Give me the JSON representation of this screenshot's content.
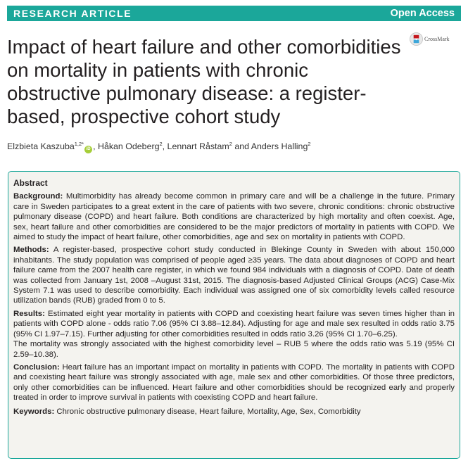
{
  "header": {
    "article_type": "RESEARCH ARTICLE",
    "access": "Open Access",
    "crossmark": "CrossMark",
    "bar_color": "#1ba79a"
  },
  "article": {
    "title": "Impact of heart failure and other comorbidities on mortality in patients with chronic obstructive pulmonary disease: a register-based, prospective cohort study",
    "authors": [
      {
        "name": "Elzbieta Kaszuba",
        "sup": "1,2*",
        "orcid": true
      },
      {
        "name": "Håkan Odeberg",
        "sup": "2"
      },
      {
        "name": "Lennart Råstam",
        "sup": "2"
      },
      {
        "name": "Anders Halling",
        "sup": "2"
      }
    ],
    "author_separators": [
      ", ",
      ", ",
      " and "
    ]
  },
  "abstract": {
    "heading": "Abstract",
    "background": {
      "label": "Background:",
      "text": "Multimorbidity has already become common in primary care and will be a challenge in the future. Primary care in Sweden participates to a great extent in the care of patients with two severe, chronic conditions: chronic obstructive pulmonary disease (COPD) and heart failure. Both conditions are characterized by high mortality and often coexist. Age, sex, heart failure and other comorbidities are considered to be the major predictors of mortality in patients with COPD. We aimed to study the impact of heart failure, other comorbidities, age and sex on mortality in patients with COPD."
    },
    "methods": {
      "label": "Methods:",
      "text": "A register-based, prospective cohort study conducted in Blekinge County in Sweden with about 150,000 inhabitants. The study population was comprised of people aged ≥35 years. The data about diagnoses of COPD and heart failure came from the 2007 health care register, in which we found 984 individuals with a diagnosis of COPD. Date of death was collected from January 1st, 2008 –August 31st, 2015. The diagnosis-based Adjusted Clinical Groups (ACG) Case-Mix System 7.1 was used to describe comorbidity. Each individual was assigned one of six comorbidity levels called resource utilization bands (RUB) graded from 0 to 5."
    },
    "results": {
      "label": "Results:",
      "text": "Estimated eight year mortality in patients with COPD and coexisting heart failure was seven times higher than in patients with COPD alone - odds ratio 7.06 (95% CI 3.88–12.84). Adjusting for age and male sex resulted in odds ratio 3.75 (95% CI 1.97–7.15). Further adjusting for other comorbidities resulted in odds ratio 3.26 (95% CI 1.70–6.25).",
      "text2": "The mortality was strongly associated with the highest comorbidity level – RUB 5 where the odds ratio was 5.19 (95% CI 2.59–10.38)."
    },
    "conclusion": {
      "label": "Conclusion:",
      "text": "Heart failure has an important impact on mortality in patients with COPD. The mortality in patients with COPD and coexisting heart failure was strongly associated with age, male sex and other comorbidities. Of those three predictors, only other comorbidities can be influenced. Heart failure and other comorbidities should be recognized early and properly treated in order to improve survival in patients with coexisting COPD and heart failure."
    },
    "keywords": {
      "label": "Keywords:",
      "text": "Chronic obstructive pulmonary disease, Heart failure, Mortality, Age, Sex, Comorbidity"
    }
  }
}
